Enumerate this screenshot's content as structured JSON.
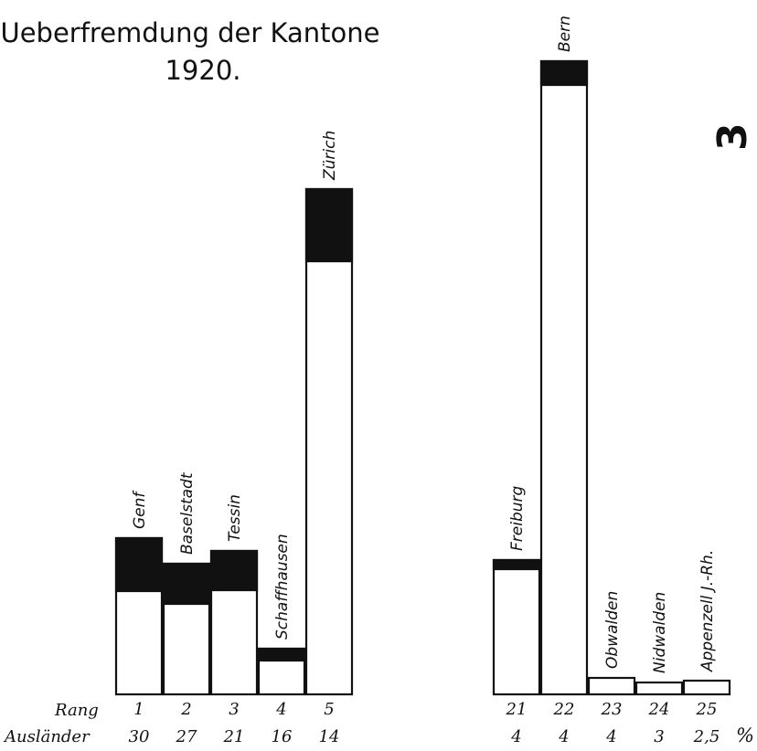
{
  "chart_data": {
    "type": "bar",
    "stacked": true,
    "title": "Ueberfremdung der Kantone",
    "subtitle": "1920.",
    "row_labels": {
      "rank": "Rang",
      "foreigners": "Ausländer"
    },
    "percent_symbol": "%",
    "side_mark": "3",
    "groups": [
      {
        "bars": [
          {
            "name": "Genf",
            "rank": "1",
            "auslaender": "30",
            "total": 171,
            "black_part": 58
          },
          {
            "name": "Baselstadt",
            "rank": "2",
            "auslaender": "27",
            "total": 143,
            "black_part": 44
          },
          {
            "name": "Tessin",
            "rank": "3",
            "auslaender": "21",
            "total": 157,
            "black_part": 43
          },
          {
            "name": "Schaffhausen",
            "rank": "4",
            "auslaender": "16",
            "total": 50,
            "black_part": 13
          },
          {
            "name": "Zürich",
            "rank": "5",
            "auslaender": "14",
            "total": 553,
            "black_part": 79
          }
        ]
      },
      {
        "bars": [
          {
            "name": "Freiburg",
            "rank": "21",
            "auslaender": "4",
            "total": 147,
            "black_part": 10
          },
          {
            "name": "Bern",
            "rank": "22",
            "auslaender": "4",
            "total": 693,
            "black_part": 26
          },
          {
            "name": "Obwalden",
            "rank": "23",
            "auslaender": "4",
            "total": 18,
            "black_part": 0
          },
          {
            "name": "Nidwalden",
            "rank": "24",
            "auslaender": "3",
            "total": 13,
            "black_part": 0
          },
          {
            "name": "Appenzell J.-Rh.",
            "rank": "25",
            "auslaender": "2,5",
            "total": 15,
            "black_part": 0
          }
        ]
      }
    ]
  }
}
